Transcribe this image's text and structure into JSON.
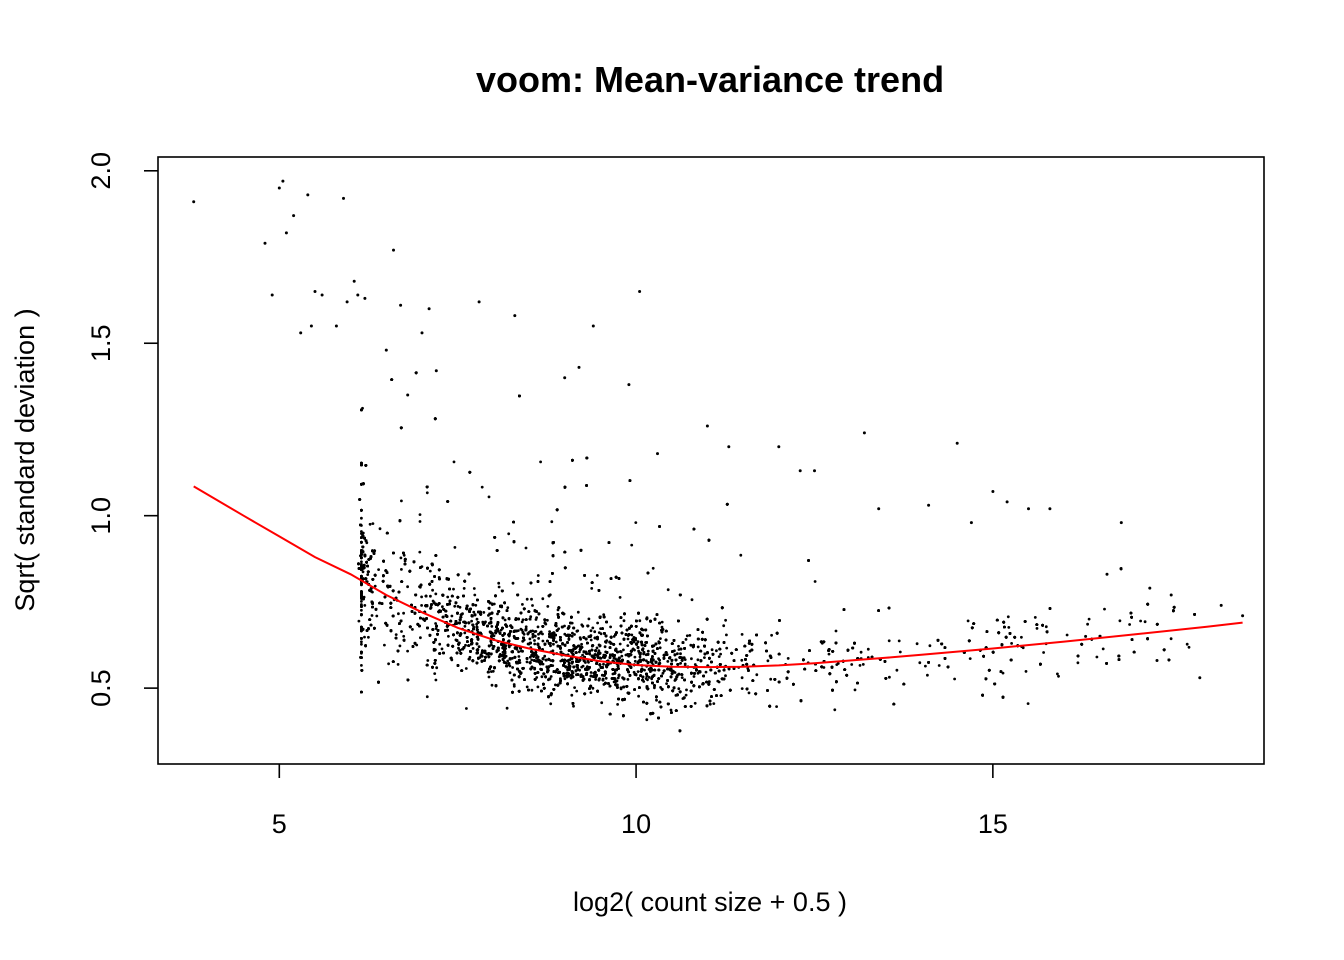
{
  "chart_data": {
    "type": "scatter",
    "title": "voom: Mean-variance trend",
    "xlabel": "log2( count size + 0.5 )",
    "ylabel": "Sqrt( standard deviation )",
    "xlim": [
      3.3,
      18.8
    ],
    "ylim": [
      0.28,
      2.04
    ],
    "x_ticks": [
      5,
      10,
      15
    ],
    "y_ticks": [
      0.5,
      1.0,
      1.5,
      2.0
    ],
    "x_tick_labels": [
      "5",
      "10",
      "15"
    ],
    "y_tick_labels": [
      "0.5",
      "1.0",
      "1.5",
      "2.0"
    ],
    "grid": false,
    "point_color": "#000000",
    "trend_color": "#ff0000",
    "trend": {
      "x": [
        3.8,
        4.5,
        5.0,
        5.5,
        6.0,
        6.5,
        7.0,
        7.5,
        8.0,
        8.5,
        9.0,
        9.5,
        10.0,
        10.5,
        11.0,
        11.5,
        12.0,
        12.5,
        13.0,
        13.5,
        14.0,
        15.0,
        16.0,
        17.0,
        18.0,
        18.5
      ],
      "y": [
        1.085,
        1.0,
        0.94,
        0.88,
        0.83,
        0.77,
        0.72,
        0.675,
        0.64,
        0.615,
        0.595,
        0.578,
        0.567,
        0.562,
        0.561,
        0.562,
        0.566,
        0.572,
        0.58,
        0.588,
        0.597,
        0.615,
        0.635,
        0.656,
        0.678,
        0.69
      ]
    },
    "points": {
      "x": [
        3.8,
        4.8,
        4.9,
        5.0,
        5.05,
        5.1,
        5.2,
        5.3,
        5.4,
        5.45,
        5.5,
        5.6,
        5.8,
        5.9,
        5.95,
        6.05,
        6.1,
        6.2,
        6.5,
        6.6,
        6.7,
        6.8,
        7.0,
        7.1,
        7.2,
        7.8,
        8.3,
        9.0,
        9.2,
        9.4,
        9.9,
        10.05,
        10.3,
        11.0,
        11.3,
        12.0,
        12.3,
        12.5,
        13.2,
        13.4,
        14.1,
        14.5,
        14.7,
        15.0,
        15.2,
        15.5,
        15.8,
        16.3,
        16.6,
        16.8,
        17.2,
        17.3,
        17.5,
        17.9,
        18.2,
        18.5
      ],
      "y": [
        1.91,
        1.79,
        1.64,
        1.95,
        1.97,
        1.82,
        1.87,
        1.53,
        1.93,
        1.55,
        1.65,
        1.64,
        1.55,
        1.92,
        1.62,
        1.68,
        1.64,
        1.63,
        1.48,
        1.77,
        1.61,
        1.35,
        1.53,
        1.6,
        1.42,
        1.62,
        1.58,
        1.4,
        1.43,
        1.55,
        1.38,
        1.65,
        1.18,
        1.26,
        1.2,
        1.2,
        1.13,
        1.13,
        1.24,
        1.02,
        1.03,
        1.21,
        0.98,
        1.07,
        1.04,
        1.02,
        1.02,
        0.65,
        0.83,
        0.98,
        0.79,
        0.58,
        0.77,
        0.53,
        0.74,
        0.71
      ]
    }
  }
}
